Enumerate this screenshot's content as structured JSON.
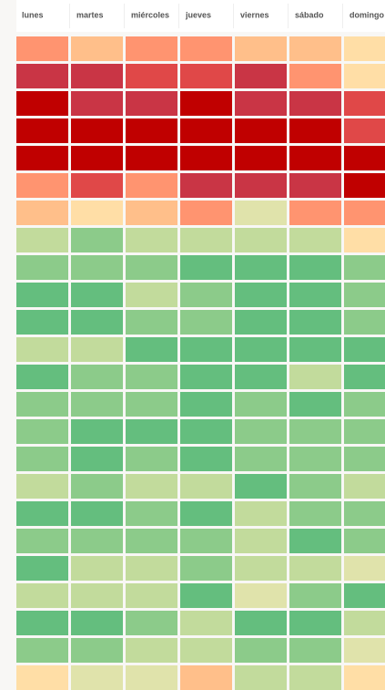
{
  "header": {
    "days": [
      "lunes",
      "martes",
      "miércoles",
      "jueves",
      "viernes",
      "sábado",
      "domingo"
    ]
  },
  "grid": {
    "rows": [
      [
        "#ff9470",
        "#ffbf8a",
        "#ff9470",
        "#ff9470",
        "#ffbf8a",
        "#ffbf8a",
        "#ffdea6"
      ],
      [
        "#c93545",
        "#c93545",
        "#e04848",
        "#e04848",
        "#c93545",
        "#ff9470",
        "#ffdea6"
      ],
      [
        "#c00000",
        "#c93545",
        "#c93545",
        "#c00000",
        "#c93545",
        "#c93545",
        "#e04848"
      ],
      [
        "#c00000",
        "#c00000",
        "#c00000",
        "#c00000",
        "#c00000",
        "#c00000",
        "#e04848"
      ],
      [
        "#c00000",
        "#c00000",
        "#c00000",
        "#c00000",
        "#c00000",
        "#c00000",
        "#c00000"
      ],
      [
        "#ff9470",
        "#e04848",
        "#ff9470",
        "#c93545",
        "#c93545",
        "#c93545",
        "#c00000"
      ],
      [
        "#ffbf8a",
        "#ffdea6",
        "#ffbf8a",
        "#ff9470",
        "#e0e3ab",
        "#ff9470",
        "#ff9470"
      ],
      [
        "#c2db9c",
        "#8ccb8a",
        "#c2db9c",
        "#c2db9c",
        "#c2db9c",
        "#c2db9c",
        "#ffdea6"
      ],
      [
        "#8ccb8a",
        "#8ccb8a",
        "#8ccb8a",
        "#64be7e",
        "#64be7e",
        "#64be7e",
        "#8ccb8a"
      ],
      [
        "#64be7e",
        "#64be7e",
        "#c2db9c",
        "#8ccb8a",
        "#64be7e",
        "#64be7e",
        "#8ccb8a"
      ],
      [
        "#64be7e",
        "#64be7e",
        "#8ccb8a",
        "#8ccb8a",
        "#64be7e",
        "#64be7e",
        "#8ccb8a"
      ],
      [
        "#c2db9c",
        "#c2db9c",
        "#64be7e",
        "#64be7e",
        "#64be7e",
        "#64be7e",
        "#64be7e"
      ],
      [
        "#64be7e",
        "#8ccb8a",
        "#8ccb8a",
        "#64be7e",
        "#64be7e",
        "#c2db9c",
        "#64be7e"
      ],
      [
        "#8ccb8a",
        "#8ccb8a",
        "#8ccb8a",
        "#64be7e",
        "#8ccb8a",
        "#64be7e",
        "#8ccb8a"
      ],
      [
        "#8ccb8a",
        "#64be7e",
        "#64be7e",
        "#64be7e",
        "#8ccb8a",
        "#8ccb8a",
        "#8ccb8a"
      ],
      [
        "#8ccb8a",
        "#64be7e",
        "#8ccb8a",
        "#64be7e",
        "#8ccb8a",
        "#8ccb8a",
        "#8ccb8a"
      ],
      [
        "#c2db9c",
        "#8ccb8a",
        "#c2db9c",
        "#c2db9c",
        "#64be7e",
        "#8ccb8a",
        "#c2db9c"
      ],
      [
        "#64be7e",
        "#64be7e",
        "#8ccb8a",
        "#64be7e",
        "#c2db9c",
        "#8ccb8a",
        "#8ccb8a"
      ],
      [
        "#8ccb8a",
        "#8ccb8a",
        "#8ccb8a",
        "#8ccb8a",
        "#c2db9c",
        "#64be7e",
        "#8ccb8a"
      ],
      [
        "#64be7e",
        "#c2db9c",
        "#c2db9c",
        "#8ccb8a",
        "#c2db9c",
        "#c2db9c",
        "#e0e3ab"
      ],
      [
        "#c2db9c",
        "#c2db9c",
        "#c2db9c",
        "#64be7e",
        "#e0e3ab",
        "#8ccb8a",
        "#64be7e"
      ],
      [
        "#64be7e",
        "#64be7e",
        "#8ccb8a",
        "#c2db9c",
        "#64be7e",
        "#64be7e",
        "#c2db9c"
      ],
      [
        "#8ccb8a",
        "#8ccb8a",
        "#c2db9c",
        "#c2db9c",
        "#8ccb8a",
        "#8ccb8a",
        "#e0e3ab"
      ],
      [
        "#ffdea6",
        "#e0e3ab",
        "#e0e3ab",
        "#ffbf8a",
        "#c2db9c",
        "#c2db9c",
        "#ffdea6"
      ]
    ]
  }
}
